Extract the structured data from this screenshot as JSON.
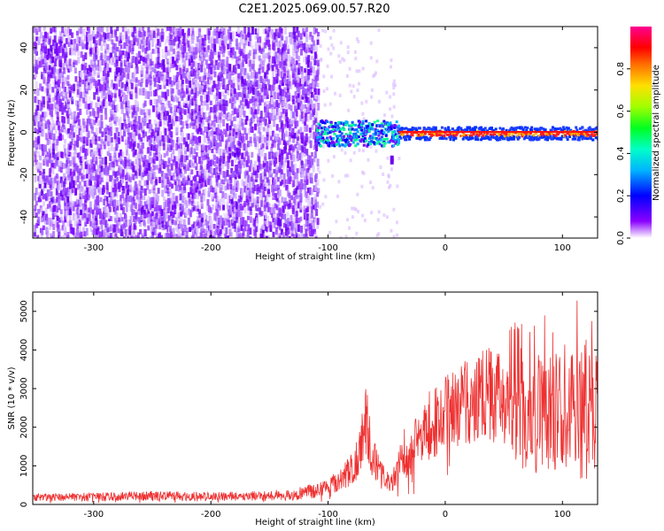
{
  "title": "C2E1.2025.069.00.57.R20",
  "chart_data": [
    {
      "type": "heatmap",
      "xlabel": "Height of straight line (km)",
      "ylabel": "Frequency (Hz)",
      "xlim": [
        -352,
        130
      ],
      "ylim": [
        -50,
        50
      ],
      "xticks": [
        -300,
        -200,
        -100,
        0,
        100
      ],
      "yticks": [
        -40,
        -20,
        0,
        20,
        40
      ],
      "colorbar": {
        "label": "Normalized spectral amplitude",
        "range": [
          0,
          1
        ],
        "ticks": [
          0.0,
          0.2,
          0.4,
          0.6,
          0.8
        ],
        "tick_labels": [
          "0.0",
          "0.2",
          "0.4",
          "0.6",
          "0.8"
        ],
        "colormap": [
          "#ffffff",
          "#7a00ff",
          "#0000ff",
          "#00c8ff",
          "#00ff80",
          "#80ff00",
          "#ffd000",
          "#ff6000",
          "#ff0000",
          "#ff00a0"
        ]
      },
      "features": {
        "noise_region_x": [
          -352,
          -110
        ],
        "signal_line_y": 0,
        "signal_start_x": -110,
        "strong_line_start_x": -40
      }
    },
    {
      "type": "line",
      "xlabel": "Height of straight line (km)",
      "ylabel": "SNR (10 * v/v)",
      "xlim": [
        -352,
        130
      ],
      "ylim": [
        0,
        5500
      ],
      "xticks": [
        -300,
        -200,
        -100,
        0,
        100
      ],
      "yticks": [
        0,
        1000,
        2000,
        3000,
        4000,
        5000
      ],
      "color": "#ee3030",
      "series": [
        {
          "x": [
            -352,
            -300,
            -250,
            -200,
            -150,
            -120,
            -100,
            -90,
            -80,
            -72,
            -68,
            -62,
            -55,
            -50,
            -45,
            -40,
            -35,
            -32,
            -28,
            -25,
            -20,
            -10,
            0,
            10,
            20,
            30,
            40,
            50,
            60,
            65,
            70,
            75,
            80,
            90,
            100,
            110,
            120,
            130
          ],
          "y": [
            180,
            200,
            220,
            210,
            230,
            300,
            450,
            650,
            900,
            1400,
            2300,
            1200,
            900,
            600,
            550,
            1100,
            1500,
            1000,
            1300,
            1700,
            1900,
            2100,
            2300,
            2500,
            2650,
            2800,
            2850,
            2750,
            2900,
            3000,
            2600,
            2200,
            2400,
            2300,
            2700,
            2500,
            2600,
            2400
          ]
        }
      ]
    }
  ]
}
